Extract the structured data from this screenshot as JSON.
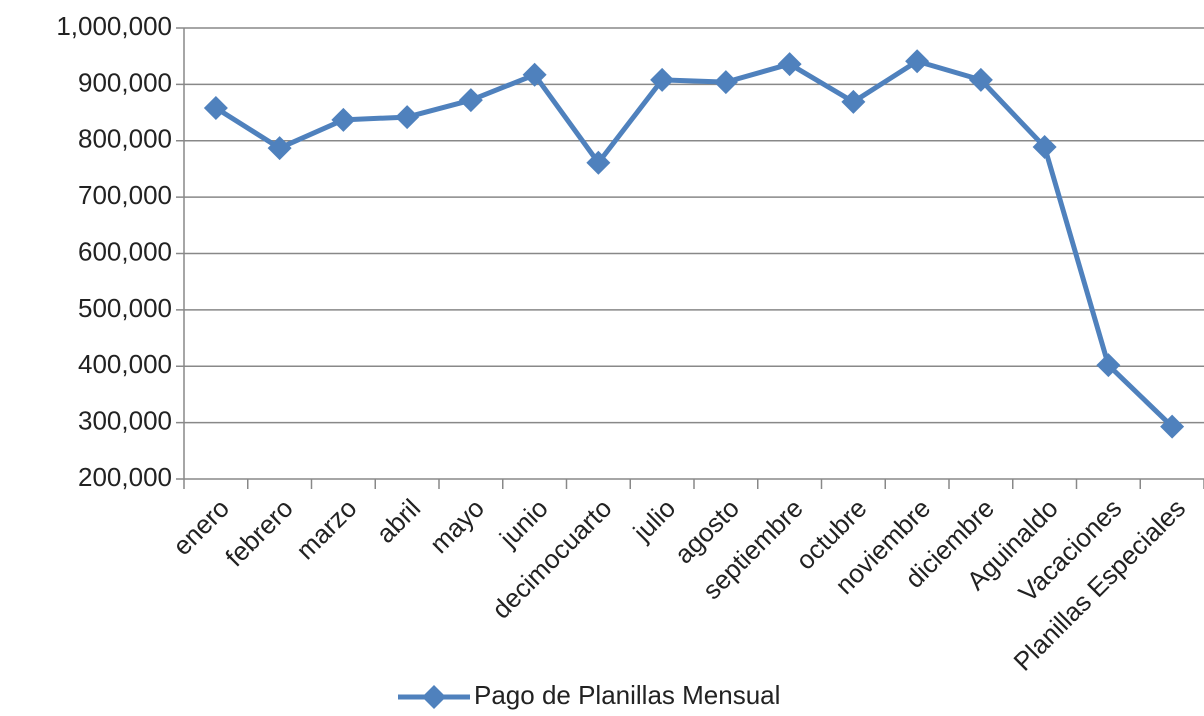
{
  "chart_data": {
    "type": "line",
    "categories": [
      "enero",
      "febrero",
      "marzo",
      "abril",
      "mayo",
      "junio",
      "decimocuarto",
      "julio",
      "agosto",
      "septiembre",
      "octubre",
      "noviembre",
      "diciembre",
      "Aguinaldo",
      "Vacaciones",
      "Planillas Especiales"
    ],
    "series": [
      {
        "name": "Pago de Planillas Mensual",
        "color": "#4f81bd",
        "values": [
          858000,
          787000,
          837000,
          842000,
          872000,
          917000,
          761000,
          908000,
          904000,
          936000,
          869000,
          941000,
          908000,
          789000,
          402000,
          293000
        ]
      }
    ],
    "ylim": [
      200000,
      1000000
    ],
    "yticks": [
      {
        "value": 200000,
        "label": "200,000"
      },
      {
        "value": 300000,
        "label": "300,000"
      },
      {
        "value": 400000,
        "label": "400,000"
      },
      {
        "value": 500000,
        "label": "500,000"
      },
      {
        "value": 600000,
        "label": "600,000"
      },
      {
        "value": 700000,
        "label": "700,000"
      },
      {
        "value": 800000,
        "label": "800,000"
      },
      {
        "value": 900000,
        "label": "900,000"
      },
      {
        "value": 1000000,
        "label": "1,000,000"
      }
    ],
    "grid": true,
    "legend": "bottom"
  }
}
